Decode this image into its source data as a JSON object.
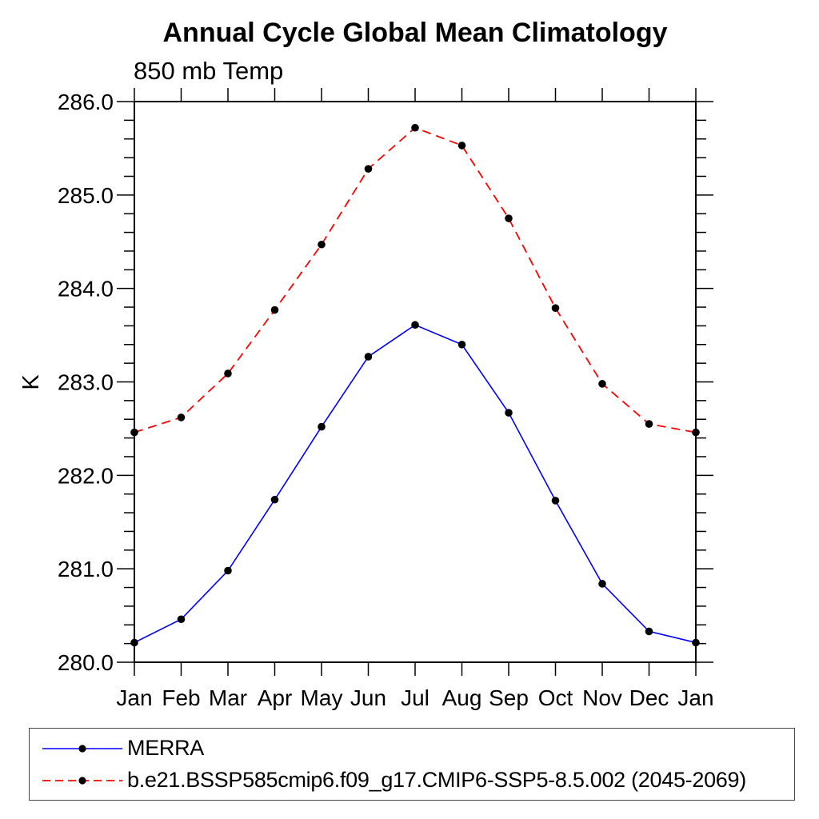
{
  "chart_data": {
    "type": "line",
    "title": "Annual Cycle Global Mean Climatology",
    "subtitle": "850 mb Temp",
    "ylabel": "K",
    "x_categories": [
      "Jan",
      "Feb",
      "Mar",
      "Apr",
      "May",
      "Jun",
      "Jul",
      "Aug",
      "Sep",
      "Oct",
      "Nov",
      "Dec",
      "Jan"
    ],
    "ylim": [
      280.0,
      286.0
    ],
    "y_major_step": 1.0,
    "y_minor_step": 0.2,
    "y_tick_labels": [
      "280.0",
      "281.0",
      "282.0",
      "283.0",
      "284.0",
      "285.0",
      "286.0"
    ],
    "grid": false,
    "legend_position": "bottom-left-box",
    "axis_color": "#000000",
    "marker_color": "#000000",
    "series": [
      {
        "name": "MERRA",
        "color": "#0000ff",
        "line_style": "solid",
        "marker": "filled-circle",
        "values": [
          280.21,
          280.46,
          280.98,
          281.74,
          282.52,
          283.27,
          283.61,
          283.4,
          282.67,
          281.73,
          280.84,
          280.33,
          280.21
        ]
      },
      {
        "name": "b.e21.BSSP585cmip6.f09_g17.CMIP6-SSP5-8.5.002 (2045-2069)",
        "color": "#ff0000",
        "line_style": "dashed",
        "marker": "filled-circle",
        "values": [
          282.46,
          282.62,
          283.09,
          283.77,
          284.47,
          285.28,
          285.72,
          285.53,
          284.75,
          283.79,
          282.98,
          282.55,
          282.46
        ]
      }
    ]
  }
}
